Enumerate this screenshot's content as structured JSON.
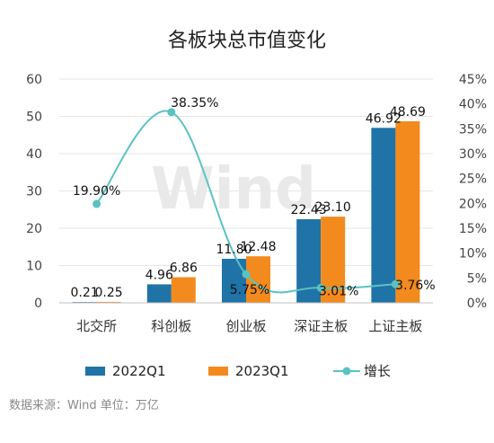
{
  "chart_data": {
    "type": "bar",
    "title": "各板块总市值变化",
    "categories": [
      "北交所",
      "科创板",
      "创业板",
      "深证主板",
      "上证主板"
    ],
    "series": [
      {
        "name": "2022Q1",
        "type": "bar",
        "axis": "left",
        "color": "#1f73a6",
        "values": [
          0.21,
          4.96,
          11.8,
          22.43,
          46.92
        ],
        "labels": [
          "0.21",
          "4.96",
          "11.80",
          "22.43",
          "46.92"
        ]
      },
      {
        "name": "2023Q1",
        "type": "bar",
        "axis": "left",
        "color": "#f28a1d",
        "values": [
          0.25,
          6.86,
          12.48,
          23.1,
          48.69
        ],
        "labels": [
          "0.25",
          "6.86",
          "12.48",
          "23.10",
          "48.69"
        ]
      },
      {
        "name": "增长",
        "type": "line",
        "axis": "right",
        "color": "#5bc2c2",
        "values": [
          19.9,
          38.35,
          5.75,
          3.01,
          3.76
        ],
        "labels": [
          "19.90%",
          "38.35%",
          "5.75%",
          "3.01%",
          "3.76%"
        ]
      }
    ],
    "y_left": {
      "min": 0,
      "max": 60,
      "ticks": [
        "0",
        "10",
        "20",
        "30",
        "40",
        "50",
        "60"
      ]
    },
    "y_right": {
      "min": 0,
      "max": 45,
      "ticks": [
        "0%",
        "5%",
        "10%",
        "15%",
        "20%",
        "25%",
        "30%",
        "35%",
        "40%",
        "45%"
      ]
    },
    "grid": true,
    "legend_position": "bottom"
  },
  "source_note": "数据来源：Wind   单位：万亿",
  "watermark": "Wind"
}
